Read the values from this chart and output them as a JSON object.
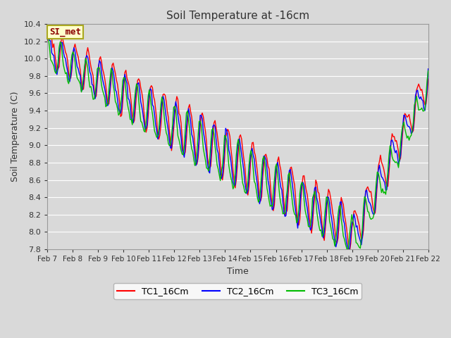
{
  "title": "Soil Temperature at -16cm",
  "xlabel": "Time",
  "ylabel": "Soil Temperature (C)",
  "ylim": [
    7.8,
    10.4
  ],
  "xlim": [
    0,
    15
  ],
  "bg_color": "#d9d9d9",
  "plot_bg_color": "#d9d9d9",
  "grid_color": "#ffffff",
  "x_labels": [
    "Feb 7",
    "Feb 8",
    "Feb 9",
    "Feb 10",
    "Feb 11",
    "Feb 12",
    "Feb 13",
    "Feb 14",
    "Feb 15",
    "Feb 16",
    "Feb 17",
    "Feb 18",
    "Feb 19",
    "Feb 20",
    "Feb 21",
    "Feb 22"
  ],
  "annotation_text": "SI_met",
  "annotation_color": "#8b0000",
  "annotation_bg": "#ffffcc",
  "annotation_border": "#aaa820",
  "series_names": [
    "TC1_16Cm",
    "TC2_16Cm",
    "TC3_16Cm"
  ],
  "series_colors": [
    "#ff0000",
    "#0000ff",
    "#00bb00"
  ],
  "n_points": 360
}
